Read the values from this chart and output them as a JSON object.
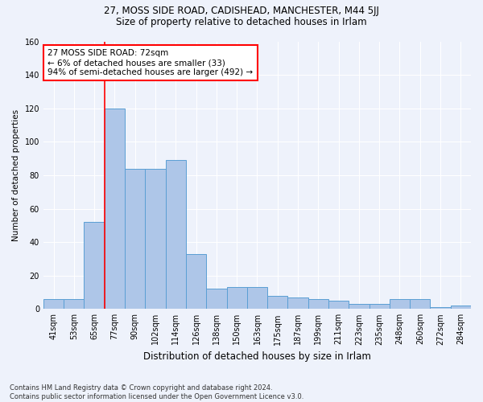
{
  "title1": "27, MOSS SIDE ROAD, CADISHEAD, MANCHESTER, M44 5JJ",
  "title2": "Size of property relative to detached houses in Irlam",
  "xlabel": "Distribution of detached houses by size in Irlam",
  "ylabel": "Number of detached properties",
  "footnote": "Contains HM Land Registry data © Crown copyright and database right 2024.\nContains public sector information licensed under the Open Government Licence v3.0.",
  "bins": [
    "41sqm",
    "53sqm",
    "65sqm",
    "77sqm",
    "90sqm",
    "102sqm",
    "114sqm",
    "126sqm",
    "138sqm",
    "150sqm",
    "163sqm",
    "175sqm",
    "187sqm",
    "199sqm",
    "211sqm",
    "223sqm",
    "235sqm",
    "248sqm",
    "260sqm",
    "272sqm",
    "284sqm"
  ],
  "values": [
    6,
    6,
    52,
    120,
    84,
    84,
    89,
    33,
    12,
    13,
    13,
    8,
    7,
    6,
    5,
    3,
    3,
    6,
    6,
    1,
    2
  ],
  "bar_color": "#aec6e8",
  "bar_edge_color": "#5a9fd4",
  "vline_color": "red",
  "annotation_text": "27 MOSS SIDE ROAD: 72sqm\n← 6% of detached houses are smaller (33)\n94% of semi-detached houses are larger (492) →",
  "annotation_box_color": "white",
  "annotation_box_edge": "red",
  "ylim": [
    0,
    160
  ],
  "yticks": [
    0,
    20,
    40,
    60,
    80,
    100,
    120,
    140,
    160
  ],
  "bg_color": "#eef2fb",
  "plot_bg_color": "#eef2fb",
  "grid_color": "white",
  "title1_fontsize": 8.5,
  "title2_fontsize": 8.5,
  "xlabel_fontsize": 8.5,
  "ylabel_fontsize": 7.5,
  "tick_fontsize": 7,
  "annot_fontsize": 7.5,
  "footnote_fontsize": 6
}
